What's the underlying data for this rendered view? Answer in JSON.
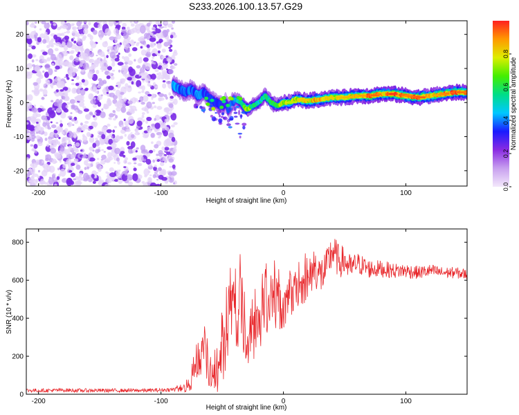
{
  "figure_title": "S233.2026.100.13.57.G29",
  "chart_data": [
    {
      "type": "heatmap",
      "title": "",
      "xlabel": "Height of straight line (km)",
      "ylabel": "Frequency (Hz)",
      "xlim": [
        -210,
        150
      ],
      "ylim": [
        -24.5,
        24
      ],
      "xticks": [
        -200,
        -100,
        0,
        100
      ],
      "yticks": [
        -20,
        -10,
        0,
        10,
        20
      ],
      "noise_region_x": [
        -210,
        -88
      ],
      "signal_trace": {
        "x": [
          -90,
          -85,
          -80,
          -75,
          -70,
          -65,
          -60,
          -55,
          -50,
          -47,
          -45,
          -40,
          -35,
          -30,
          -25,
          -20,
          -15,
          -10,
          -5,
          0,
          5,
          10,
          20,
          30,
          40,
          50,
          60,
          70,
          80,
          90,
          100,
          110,
          120,
          130,
          140,
          150
        ],
        "freq": [
          5,
          4,
          3,
          4,
          2,
          3,
          1,
          0,
          -1,
          0,
          -2,
          1,
          0,
          -2,
          -1,
          0,
          2,
          0,
          -1,
          0,
          0,
          1,
          0.5,
          1,
          1.5,
          1.5,
          2,
          2,
          2.5,
          2.5,
          2,
          1.5,
          2,
          2.5,
          3,
          3
        ],
        "amplitude": [
          0.5,
          0.4,
          0.45,
          0.4,
          0.45,
          0.4,
          0.4,
          0.35,
          0.35,
          0.3,
          0.4,
          0.4,
          0.5,
          0.8,
          0.55,
          0.5,
          0.55,
          0.6,
          0.6,
          0.75,
          0.7,
          0.75,
          0.8,
          0.85,
          0.75,
          0.8,
          0.8,
          0.9,
          0.85,
          0.95,
          0.85,
          0.9,
          0.8,
          0.85,
          0.9,
          0.85
        ]
      },
      "colorbar": {
        "label": "Normalized spectral amplitude",
        "range": [
          0,
          1
        ],
        "ticks": [
          "0.0",
          "0.2",
          "0.4",
          "0.6",
          "0.8"
        ],
        "colormap": [
          "#f3e8fb",
          "#c8a0ef",
          "#8a2be2",
          "#1a1aff",
          "#00c8ff",
          "#00dd88",
          "#44ee00",
          "#ddee00",
          "#ff9900",
          "#ff2020"
        ]
      }
    },
    {
      "type": "line",
      "title": "",
      "xlabel": "Height of straight line (km)",
      "ylabel": "SNR (10 * v/v)",
      "xlim": [
        -210,
        150
      ],
      "ylim": [
        0,
        870
      ],
      "xticks": [
        -200,
        -100,
        0,
        100
      ],
      "yticks": [
        0,
        200,
        400,
        600,
        800
      ],
      "line_color": "#e8262a",
      "series": [
        {
          "name": "SNR",
          "x": [
            -210,
            -200,
            -190,
            -180,
            -170,
            -160,
            -150,
            -140,
            -130,
            -120,
            -110,
            -100,
            -90,
            -85,
            -80,
            -75,
            -70,
            -65,
            -60,
            -55,
            -50,
            -45,
            -40,
            -38,
            -35,
            -32,
            -30,
            -25,
            -20,
            -15,
            -10,
            -5,
            0,
            5,
            10,
            15,
            20,
            25,
            30,
            35,
            40,
            45,
            50,
            55,
            60,
            70,
            80,
            90,
            100,
            110,
            120,
            130,
            140,
            150
          ],
          "values": [
            20,
            20,
            20,
            22,
            20,
            20,
            20,
            20,
            20,
            20,
            20,
            22,
            25,
            25,
            30,
            60,
            150,
            220,
            100,
            80,
            200,
            300,
            520,
            250,
            540,
            300,
            200,
            310,
            380,
            430,
            450,
            480,
            440,
            480,
            550,
            570,
            580,
            680,
            620,
            660,
            760,
            700,
            700,
            660,
            690,
            660,
            660,
            650,
            650,
            640,
            650,
            640,
            640,
            630
          ],
          "noise_amplitude": [
            10,
            10,
            10,
            10,
            10,
            10,
            10,
            10,
            10,
            10,
            10,
            10,
            10,
            15,
            20,
            50,
            90,
            100,
            80,
            90,
            150,
            180,
            150,
            130,
            180,
            150,
            120,
            140,
            150,
            150,
            140,
            130,
            120,
            110,
            100,
            100,
            110,
            110,
            110,
            100,
            100,
            90,
            80,
            70,
            60,
            50,
            45,
            40,
            40,
            35,
            35,
            30,
            30,
            30
          ]
        }
      ]
    }
  ]
}
